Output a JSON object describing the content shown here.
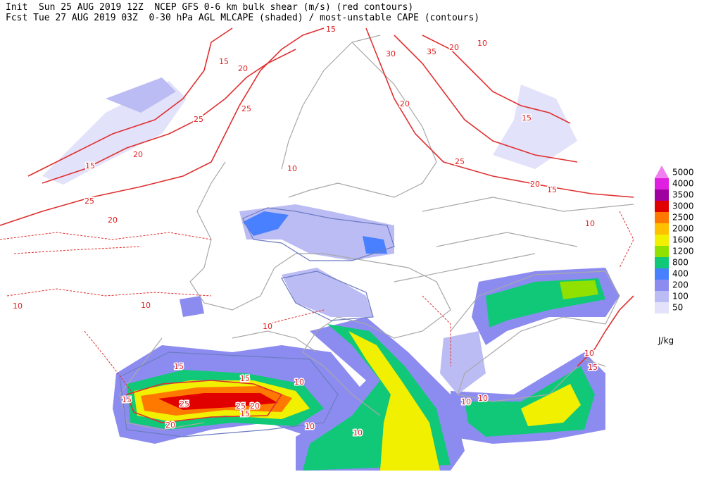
{
  "header": {
    "line1": "Init  Sun 25 AUG 2019 12Z  NCEP GFS 0-6 km bulk shear (m/s) (red contours)",
    "line2": "Fcst Tue 27 AUG 2019 03Z  0-30 hPa AGL MLCAPE (shaded) / most-unstable CAPE (contours)"
  },
  "legend": {
    "levels": [
      {
        "label": "5000",
        "color": "#f080f0"
      },
      {
        "label": "4000",
        "color": "#e020e0"
      },
      {
        "label": "3500",
        "color": "#a000a0"
      },
      {
        "label": "3000",
        "color": "#e00000"
      },
      {
        "label": "2500",
        "color": "#ff7800"
      },
      {
        "label": "2000",
        "color": "#ffc000"
      },
      {
        "label": "1600",
        "color": "#f0f000"
      },
      {
        "label": "1200",
        "color": "#90e000"
      },
      {
        "label": "800",
        "color": "#10c878"
      },
      {
        "label": "400",
        "color": "#4880ff"
      },
      {
        "label": "200",
        "color": "#8c8cf0"
      },
      {
        "label": "100",
        "color": "#bcbcf4"
      },
      {
        "label": "50",
        "color": "#e2e2fa"
      }
    ],
    "unit": "J/kg"
  },
  "contour_labels": [
    15,
    20,
    15,
    30,
    35,
    20,
    10,
    25,
    20,
    25,
    15,
    20,
    25,
    20,
    25,
    20,
    15,
    10,
    15,
    10,
    10,
    10,
    10,
    15,
    15,
    10,
    15,
    25,
    25,
    20,
    15,
    20,
    10,
    10,
    10,
    10,
    10,
    15
  ]
}
